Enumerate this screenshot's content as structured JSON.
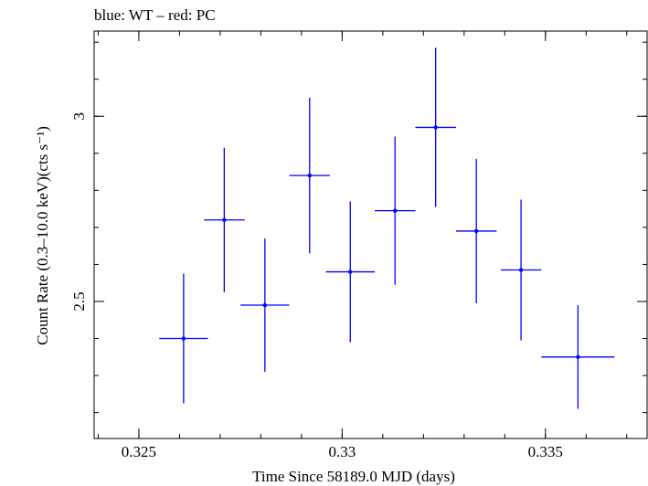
{
  "chart_data": {
    "type": "scatter",
    "title": "blue: WT – red: PC",
    "xlabel": "Time Since 58189.0 MJD (days)",
    "ylabel": "Count Rate (0.3–10.0 keV)(cts s⁻¹)",
    "xlim": [
      0.3239,
      0.3375
    ],
    "ylim": [
      2.13,
      3.23
    ],
    "xticks": [
      {
        "value": 0.325,
        "label": "0.325"
      },
      {
        "value": 0.33,
        "label": "0.33"
      },
      {
        "value": 0.335,
        "label": "0.335"
      }
    ],
    "yticks": [
      {
        "value": 2.5,
        "label": "2.5"
      },
      {
        "value": 3.0,
        "label": "3"
      }
    ],
    "x_minor_step": 0.001,
    "y_minor_step": 0.1,
    "grid": false,
    "series": [
      {
        "color": "#0000ff",
        "points": [
          {
            "x": 0.3261,
            "xerr": 0.0006,
            "y": 2.4,
            "yerr": 0.175
          },
          {
            "x": 0.3271,
            "xerr": 0.0005,
            "y": 2.72,
            "yerr": 0.195
          },
          {
            "x": 0.3281,
            "xerr": 0.0006,
            "y": 2.49,
            "yerr": 0.18
          },
          {
            "x": 0.3292,
            "xerr": 0.0005,
            "y": 2.84,
            "yerr": 0.21
          },
          {
            "x": 0.3302,
            "xerr": 0.0006,
            "y": 2.58,
            "yerr": 0.19
          },
          {
            "x": 0.3313,
            "xerr": 0.0005,
            "y": 2.745,
            "yerr": 0.2
          },
          {
            "x": 0.3323,
            "xerr": 0.0005,
            "y": 2.97,
            "yerr": 0.215
          },
          {
            "x": 0.3333,
            "xerr": 0.0005,
            "y": 2.69,
            "yerr": 0.195
          },
          {
            "x": 0.3344,
            "xerr": 0.0005,
            "y": 2.585,
            "yerr": 0.19
          },
          {
            "x": 0.3358,
            "xerr": 0.0009,
            "y": 2.35,
            "yerr": 0.14
          }
        ]
      }
    ]
  }
}
